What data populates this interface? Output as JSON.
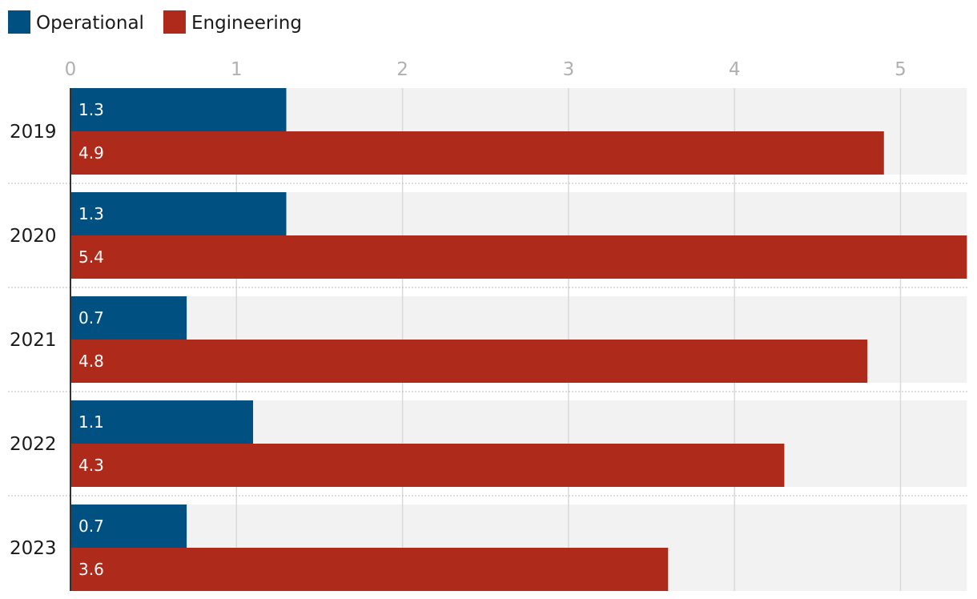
{
  "chart_data": {
    "type": "bar",
    "orientation": "horizontal",
    "title": "",
    "xlabel": "",
    "ylabel": "",
    "xlim": [
      0,
      5.4
    ],
    "x_ticks": [
      0,
      1,
      2,
      3,
      4,
      5
    ],
    "grid": true,
    "legend_position": "top-left",
    "categories": [
      "2019",
      "2020",
      "2021",
      "2022",
      "2023"
    ],
    "series": [
      {
        "name": "Operational",
        "color": "#005082",
        "values": [
          1.3,
          1.3,
          0.7,
          1.1,
          0.7
        ],
        "labels": [
          "1.3",
          "1.3",
          "0.7",
          "1.1",
          "0.7"
        ]
      },
      {
        "name": "Engineering",
        "color": "#AE2A1A",
        "values": [
          4.9,
          5.4,
          4.8,
          4.3,
          3.6
        ],
        "labels": [
          "4.9",
          "5.4",
          "4.8",
          "4.3",
          "3.6"
        ]
      }
    ],
    "colors": {
      "band": "#F2F2F2",
      "grid": "#D9D9D9",
      "separator": "#BDBDBD",
      "axis": "#333333",
      "tick_text": "#B0B0B0",
      "text": "#1A1A1A",
      "data_label": "#FFFFFF"
    }
  }
}
